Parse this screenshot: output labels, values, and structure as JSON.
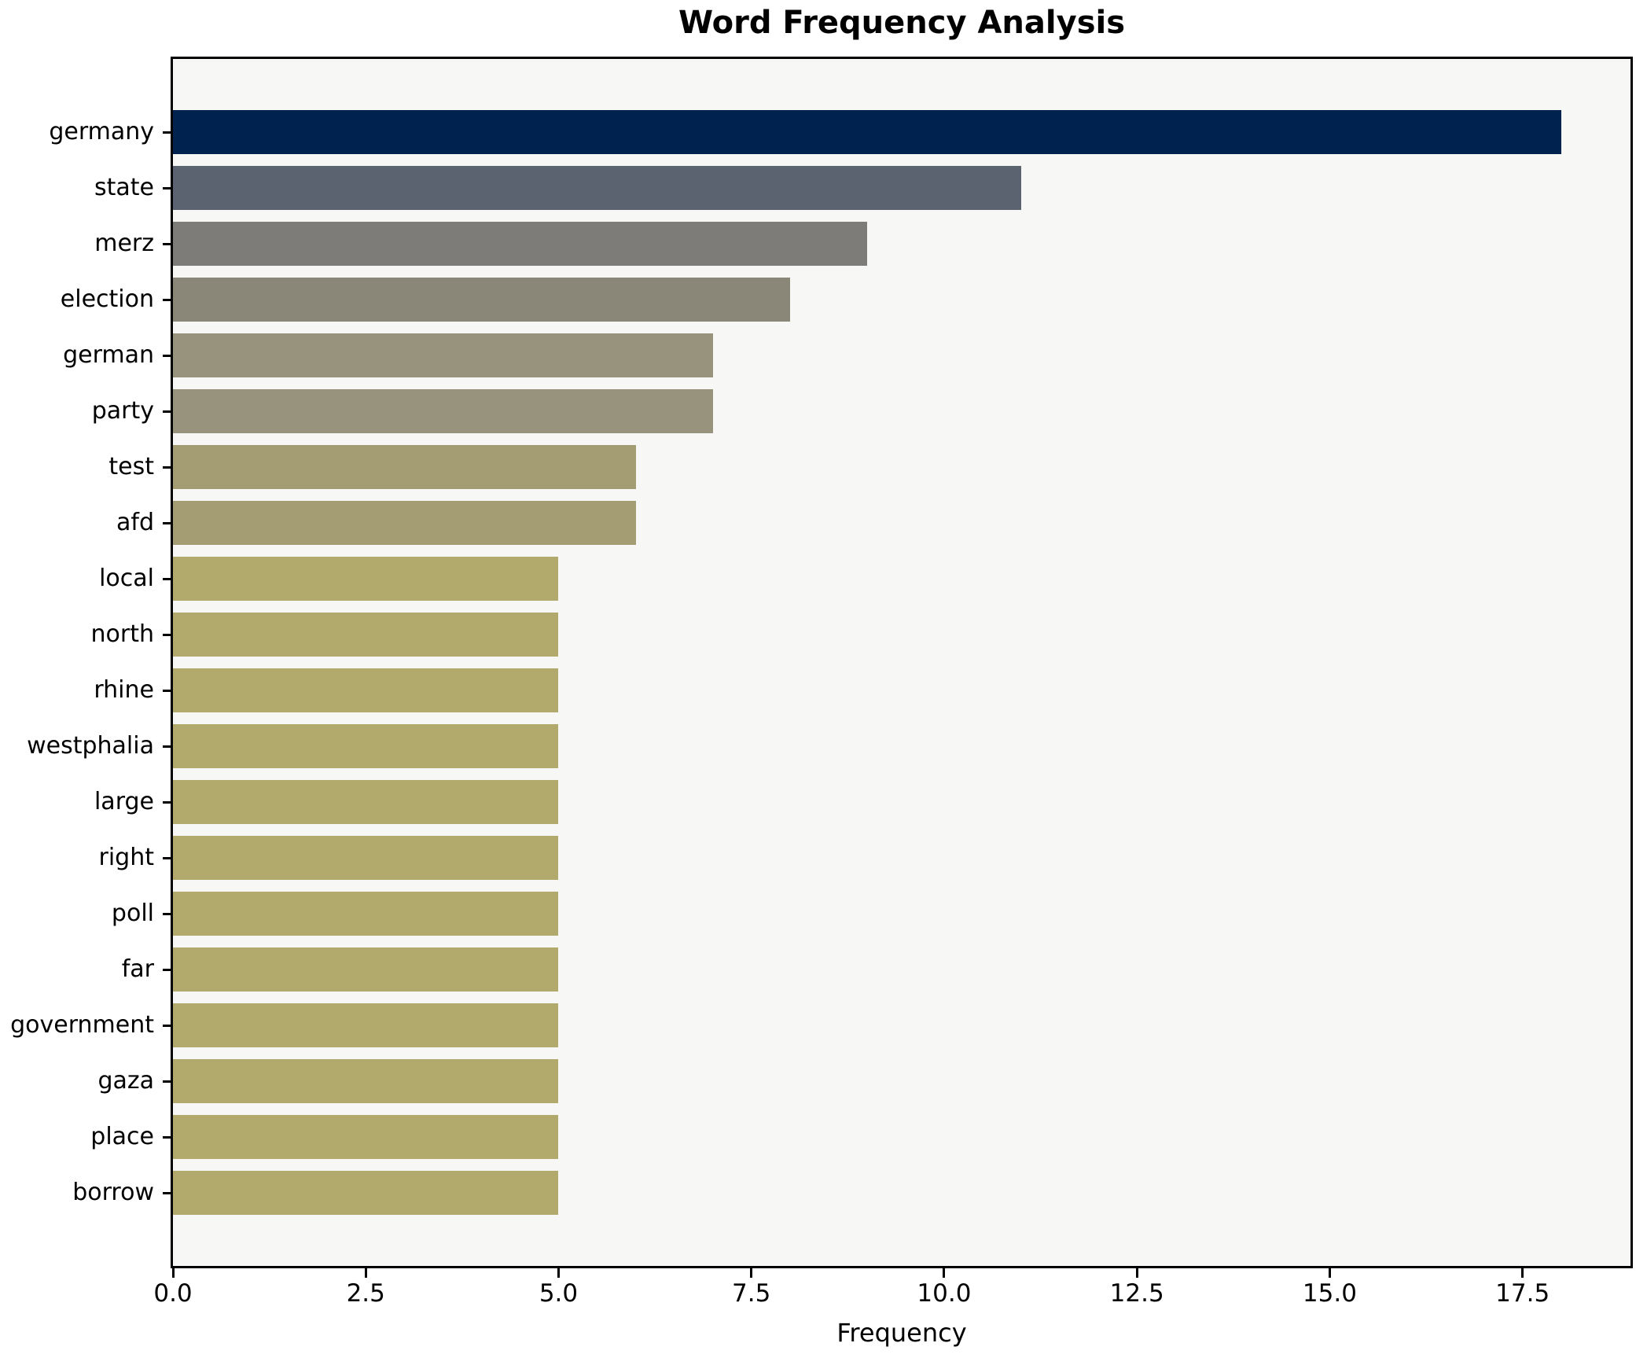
{
  "figure": {
    "background": "#ffffff",
    "plot_background": "#f7f7f6",
    "spine_color": "#000000",
    "text_color": "#000000"
  },
  "chart_data": {
    "type": "bar",
    "orientation": "horizontal",
    "title": "Word Frequency Analysis",
    "xlabel": "Frequency",
    "ylabel": "",
    "categories": [
      "germany",
      "state",
      "merz",
      "election",
      "german",
      "party",
      "test",
      "afd",
      "local",
      "north",
      "rhine",
      "westphalia",
      "large",
      "right",
      "poll",
      "far",
      "government",
      "gaza",
      "place",
      "borrow"
    ],
    "values": [
      18,
      11,
      9,
      8,
      7,
      7,
      6,
      6,
      5,
      5,
      5,
      5,
      5,
      5,
      5,
      5,
      5,
      5,
      5,
      5
    ],
    "bar_colors": [
      "#00224e",
      "#5c6370",
      "#7d7c78",
      "#8a8779",
      "#98937c",
      "#98937c",
      "#a49d74",
      "#a49d74",
      "#b2a96d",
      "#b2a96d",
      "#b2a96d",
      "#b2a96d",
      "#b2a96d",
      "#b2a96d",
      "#b2a96d",
      "#b2a96d",
      "#b2a96d",
      "#b2a96d",
      "#b2a96d",
      "#b2a96d"
    ],
    "xlim": [
      0,
      18.9
    ],
    "xticks": [
      0,
      2.5,
      5,
      7.5,
      10,
      12.5,
      15,
      17.5
    ],
    "xtick_labels": [
      "0.0",
      "2.5",
      "5.0",
      "7.5",
      "10.0",
      "12.5",
      "15.0",
      "17.5"
    ],
    "grid": false,
    "legend": null
  }
}
